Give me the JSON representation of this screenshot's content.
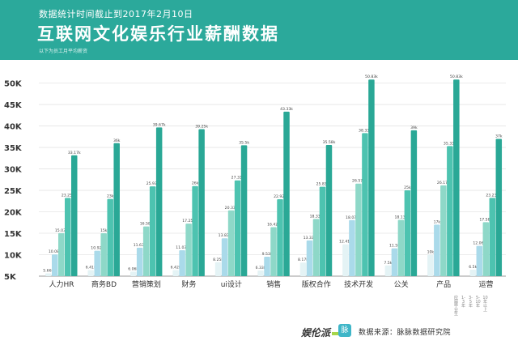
{
  "header": {
    "subtitle": "数据统计时间截止到2017年2月10日",
    "title": "互联网文化娱乐行业薪酬数据",
    "note": "以下为员工月平均薪资"
  },
  "footer": {
    "logo_text": "娱伦派",
    "mai_icon": "脉",
    "source": "数据来源：脉脉数据研究院"
  },
  "legend": {
    "entries": [
      "应届毕业生",
      "1-3年",
      "3-5年",
      "5-10年",
      "10年以上"
    ]
  },
  "colors": {
    "header_bg": "#2ba99b",
    "series": [
      "#e4f3f5",
      "#aadaea",
      "#8ed8c8",
      "#4dc3b0",
      "#2aa896"
    ]
  },
  "chart_data": {
    "type": "bar",
    "categories": [
      "人力HR",
      "商务BD",
      "营销策划",
      "财务",
      "ui设计",
      "销售",
      "版权合作",
      "技术开发",
      "公关",
      "产品",
      "运营"
    ],
    "ylim": [
      5,
      52
    ],
    "yticks": [
      "5K",
      "10K",
      "15K",
      "20K",
      "25K",
      "30K",
      "35K",
      "40K",
      "45K",
      "50K"
    ],
    "ytick_values": [
      5,
      10,
      15,
      20,
      25,
      30,
      35,
      40,
      45,
      50
    ],
    "series": [
      {
        "values": [
          5.66,
          6.41,
          6.06,
          6.42,
          8.25,
          6.33,
          8.17,
          12.41,
          7.5,
          10,
          6.5
        ],
        "labels": [
          "5.66k",
          "6.41k",
          "6.06k",
          "6.42k",
          "8.25k",
          "6.33k",
          "8.17k",
          "12.41k",
          "7.5k",
          "10k",
          "6.5k"
        ]
      },
      {
        "values": [
          10.08,
          10.92,
          11.63,
          11.03,
          13.83,
          9.53,
          13.33,
          18.07,
          11.5,
          17,
          12.06
        ],
        "labels": [
          "10.08k",
          "10.92k",
          "11.63k",
          "11.03k",
          "13.83k",
          "9.53k",
          "13.33k",
          "18.07k",
          "11.5k",
          "17k",
          "12.06k"
        ]
      },
      {
        "values": [
          15.03,
          15,
          16.58,
          17.25,
          20.33,
          16.42,
          18.33,
          26.57,
          18.13,
          26.17,
          17.58
        ],
        "labels": [
          "15.03k",
          "15k",
          "16.58k",
          "17.25k",
          "20.33k",
          "16.42k",
          "18.33k",
          "26.57k",
          "18.13k",
          "26.17k",
          "17.58k"
        ]
      },
      {
        "values": [
          23.25,
          23,
          25.93,
          26,
          27.33,
          22.92,
          25.83,
          38.33,
          25,
          35.33,
          23.23
        ],
        "labels": [
          "23.25k",
          "23k",
          "25.93k",
          "26k",
          "27.33k",
          "22.92k",
          "25.83k",
          "38.33k",
          "25k",
          "35.33k",
          "23.23k"
        ]
      },
      {
        "values": [
          33.17,
          36,
          39.67,
          39.25,
          35.5,
          43.33,
          35.58,
          50.83,
          39,
          50.83,
          37
        ],
        "labels": [
          "33.17k",
          "36k",
          "39.67k",
          "39.25k",
          "35.5k",
          "43.33k",
          "35.58k",
          "50.83k",
          "39k",
          "50.83k",
          "37k"
        ]
      }
    ]
  }
}
